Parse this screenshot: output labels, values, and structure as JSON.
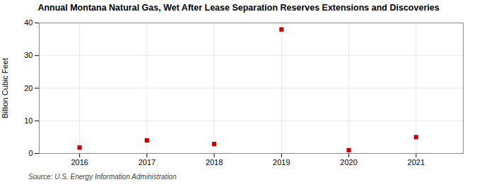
{
  "chart_data": {
    "type": "scatter",
    "title": "Annual Montana Natural Gas, Wet After Lease Separation Reserves Extensions and Discoveries",
    "ylabel": "Billion Cubic Feet",
    "source": "Source: U.S. Energy Information Administration",
    "x": [
      2016,
      2017,
      2018,
      2019,
      2020,
      2021
    ],
    "values": [
      1.8,
      4.0,
      2.9,
      38.0,
      1.0,
      5.0
    ],
    "color": "#cc0000",
    "marker": "square",
    "xlim": [
      2015.4,
      2021.7
    ],
    "xticks": [
      2016,
      2017,
      2018,
      2019,
      2020,
      2021
    ],
    "ylim": [
      0,
      40
    ],
    "yticks": [
      0,
      10,
      20,
      30,
      40
    ],
    "grid": true
  }
}
